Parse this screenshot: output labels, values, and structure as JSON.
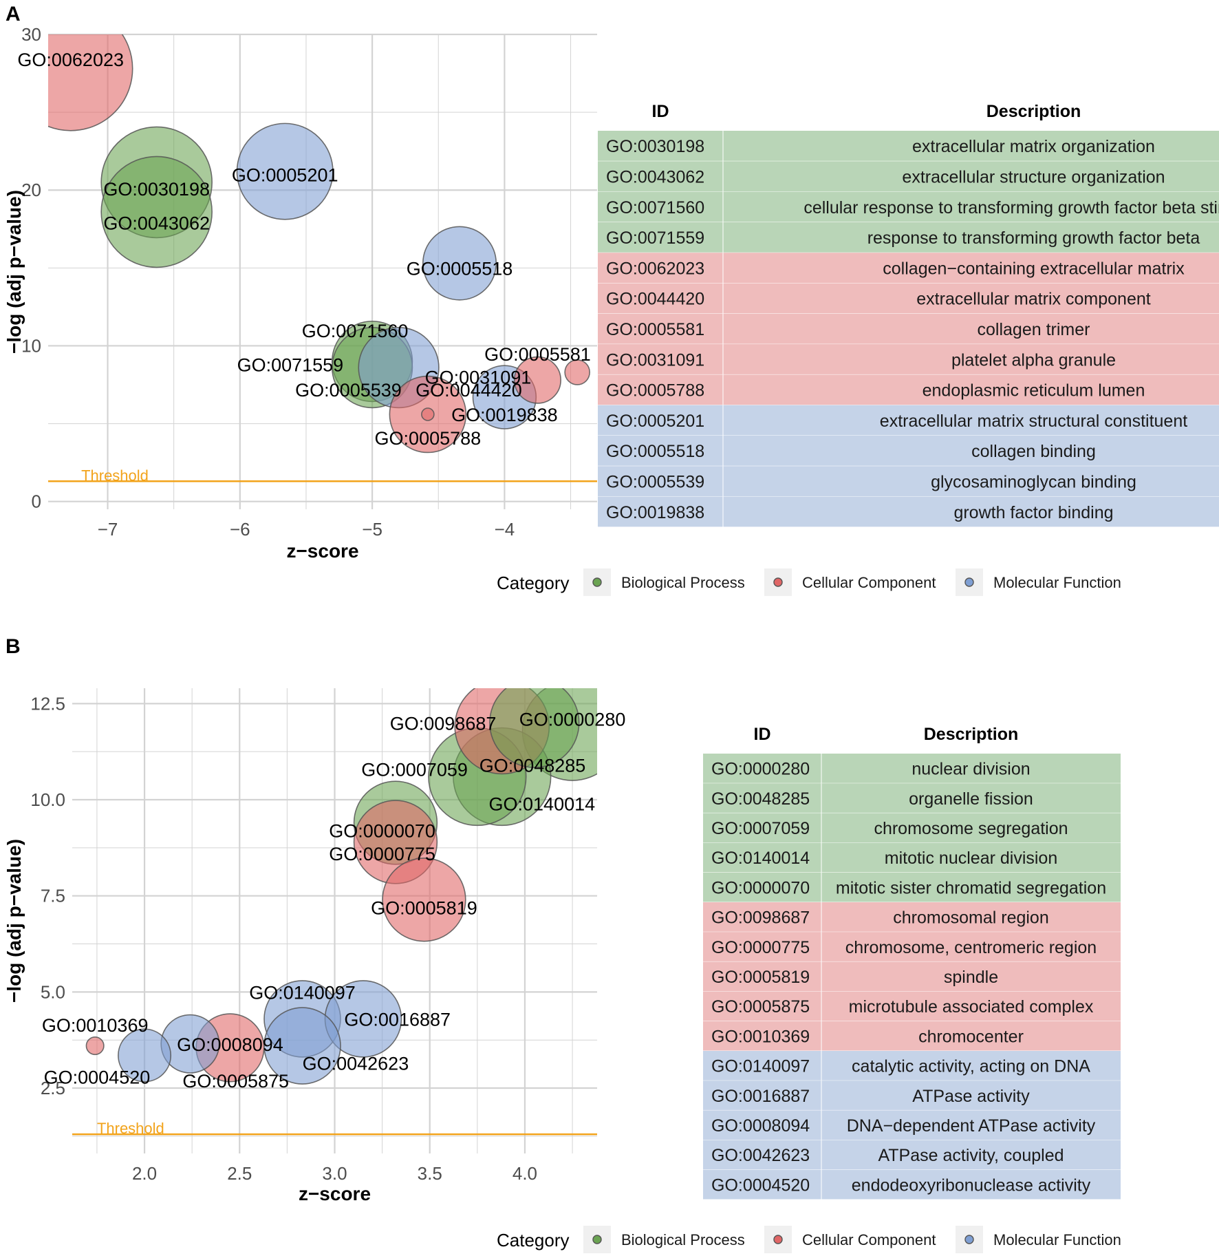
{
  "colors": {
    "Biological Process": "#6aa352",
    "Cellular Component": "#e06666",
    "Molecular Function": "#7f9fd3",
    "row_Biological Process": "#b9d5b7",
    "row_Cellular Component": "#efbcbc",
    "row_Molecular Function": "#c5d3e8",
    "threshold": "#f2a31b",
    "grid": "#d3d3d3"
  },
  "chart_data": [
    {
      "type": "scatter",
      "panel_label": "A",
      "xlabel": "z−score",
      "ylabel": "−log (adj p−value)",
      "xlim": [
        -7.45,
        -3.3
      ],
      "ylim": [
        -0.5,
        30
      ],
      "x_ticks": [
        -7,
        -6,
        -5,
        -4
      ],
      "x_tick_labels": [
        "−7",
        "−6",
        "−5",
        "−4"
      ],
      "y_ticks": [
        0,
        10,
        20,
        30
      ],
      "y_tick_labels": [
        "0",
        "10",
        "20",
        "30"
      ],
      "threshold": 1.3,
      "threshold_label": "Threshold",
      "points": [
        {
          "id": "GO:0062023",
          "category": "Cellular Component",
          "x": -7.28,
          "y": 27.8,
          "size": 100
        },
        {
          "id": "GO:0030198",
          "category": "Biological Process",
          "x": -6.63,
          "y": 20.5,
          "size": 80
        },
        {
          "id": "GO:0043062",
          "category": "Biological Process",
          "x": -6.63,
          "y": 18.6,
          "size": 80
        },
        {
          "id": "GO:0005201",
          "category": "Molecular Function",
          "x": -5.66,
          "y": 21.2,
          "size": 60
        },
        {
          "id": "GO:0005518",
          "category": "Molecular Function",
          "x": -4.34,
          "y": 15.3,
          "size": 35
        },
        {
          "id": "GO:0071560",
          "category": "Biological Process",
          "x": -5.0,
          "y": 9.0,
          "size": 42
        },
        {
          "id": "GO:0071559",
          "category": "Biological Process",
          "x": -5.0,
          "y": 8.6,
          "size": 42
        },
        {
          "id": "GO:0005539",
          "category": "Molecular Function",
          "x": -4.8,
          "y": 8.6,
          "size": 42
        },
        {
          "id": "GO:0005581",
          "category": "Cellular Component",
          "x": -3.45,
          "y": 8.3,
          "size": 4
        },
        {
          "id": "GO:0031091",
          "category": "Cellular Component",
          "x": -3.75,
          "y": 7.8,
          "size": 14
        },
        {
          "id": "GO:0044420",
          "category": "Cellular Component",
          "x": -4.58,
          "y": 5.6,
          "size": 38
        },
        {
          "id": "GO:0019838",
          "category": "Molecular Function",
          "x": -4.0,
          "y": 6.7,
          "size": 26
        },
        {
          "id": "GO:0005788",
          "category": "Cellular Component",
          "x": -4.58,
          "y": 5.6,
          "size": 1
        }
      ],
      "labels": [
        {
          "text": "GO:0062023",
          "x": -7.28,
          "y": 28.4
        },
        {
          "text": "GO:0030198",
          "x": -6.63,
          "y": 20.1
        },
        {
          "text": "GO:0043062",
          "x": -6.63,
          "y": 17.9
        },
        {
          "text": "GO:0005201",
          "x": -5.66,
          "y": 21.0
        },
        {
          "text": "GO:0005518",
          "x": -4.34,
          "y": 15.0
        },
        {
          "text": "GO:0071560",
          "x": -5.13,
          "y": 11.0
        },
        {
          "text": "GO:0071559",
          "x": -5.62,
          "y": 8.8
        },
        {
          "text": "GO:0005539",
          "x": -5.18,
          "y": 7.2
        },
        {
          "text": "GO:0005581",
          "x": -3.75,
          "y": 9.5
        },
        {
          "text": "GO:0031091",
          "x": -4.2,
          "y": 8.0
        },
        {
          "text": "GO:0044420",
          "x": -4.27,
          "y": 7.2
        },
        {
          "text": "GO:0019838",
          "x": -4.0,
          "y": 5.6
        },
        {
          "text": "GO:0005788",
          "x": -4.58,
          "y": 4.1
        }
      ],
      "legend": {
        "title": "Category",
        "entries": [
          "Biological Process",
          "Cellular Component",
          "Molecular Function"
        ]
      },
      "table": {
        "headers": {
          "id": "ID",
          "description": "Description"
        },
        "rows": [
          {
            "id": "GO:0030198",
            "description": "extracellular matrix organization",
            "category": "Biological Process"
          },
          {
            "id": "GO:0043062",
            "description": "extracellular structure organization",
            "category": "Biological Process"
          },
          {
            "id": "GO:0071560",
            "description": "cellular response to transforming growth factor beta stimulus",
            "category": "Biological Process"
          },
          {
            "id": "GO:0071559",
            "description": "response to transforming growth factor beta",
            "category": "Biological Process"
          },
          {
            "id": "GO:0062023",
            "description": "collagen−containing extracellular matrix",
            "category": "Cellular Component"
          },
          {
            "id": "GO:0044420",
            "description": "extracellular matrix component",
            "category": "Cellular Component"
          },
          {
            "id": "GO:0005581",
            "description": "collagen trimer",
            "category": "Cellular Component"
          },
          {
            "id": "GO:0031091",
            "description": "platelet alpha granule",
            "category": "Cellular Component"
          },
          {
            "id": "GO:0005788",
            "description": "endoplasmic reticulum lumen",
            "category": "Cellular Component"
          },
          {
            "id": "GO:0005201",
            "description": "extracellular matrix structural constituent",
            "category": "Molecular Function"
          },
          {
            "id": "GO:0005518",
            "description": "collagen binding",
            "category": "Molecular Function"
          },
          {
            "id": "GO:0005539",
            "description": "glycosaminoglycan binding",
            "category": "Molecular Function"
          },
          {
            "id": "GO:0019838",
            "description": "growth factor binding",
            "category": "Molecular Function"
          }
        ]
      }
    },
    {
      "type": "scatter",
      "panel_label": "B",
      "xlabel": "z−score",
      "ylabel": "−log (adj p−value)",
      "xlim": [
        1.62,
        4.38
      ],
      "ylim": [
        0.8,
        12.9
      ],
      "x_ticks": [
        2.0,
        2.5,
        3.0,
        3.5,
        4.0
      ],
      "x_tick_labels": [
        "2.0",
        "2.5",
        "3.0",
        "3.5",
        "4.0"
      ],
      "y_ticks": [
        2.5,
        5.0,
        7.5,
        10.0,
        12.5
      ],
      "y_tick_labels": [
        "2.5",
        "5.0",
        "7.5",
        "10.0",
        "12.5"
      ],
      "threshold": 1.3,
      "threshold_label": "Threshold",
      "points": [
        {
          "id": "GO:0000280",
          "category": "Biological Process",
          "x": 4.25,
          "y": 11.8,
          "size": 65
        },
        {
          "id": "GO:0048285",
          "category": "Biological Process",
          "x": 3.88,
          "y": 10.6,
          "size": 62
        },
        {
          "id": "GO:0098687",
          "category": "Cellular Component",
          "x": 3.88,
          "y": 11.9,
          "size": 58
        },
        {
          "id": "GO:0007059",
          "category": "Biological Process",
          "x": 3.75,
          "y": 10.6,
          "size": 62
        },
        {
          "id": "GO:0140014",
          "category": "Biological Process",
          "x": 4.05,
          "y": 12.0,
          "size": 52
        },
        {
          "id": "GO:0000070",
          "category": "Biological Process",
          "x": 3.32,
          "y": 9.4,
          "size": 45
        },
        {
          "id": "GO:0000775",
          "category": "Cellular Component",
          "x": 3.32,
          "y": 8.9,
          "size": 45
        },
        {
          "id": "GO:0005819",
          "category": "Cellular Component",
          "x": 3.47,
          "y": 7.4,
          "size": 45
        },
        {
          "id": "GO:0140097",
          "category": "Molecular Function",
          "x": 2.83,
          "y": 4.3,
          "size": 38
        },
        {
          "id": "GO:0016887",
          "category": "Molecular Function",
          "x": 3.15,
          "y": 4.3,
          "size": 38
        },
        {
          "id": "GO:0042623",
          "category": "Molecular Function",
          "x": 2.83,
          "y": 3.6,
          "size": 38
        },
        {
          "id": "GO:0008094",
          "category": "Molecular Function",
          "x": 2.24,
          "y": 3.65,
          "size": 22
        },
        {
          "id": "GO:0005875",
          "category": "Cellular Component",
          "x": 2.45,
          "y": 3.55,
          "size": 30
        },
        {
          "id": "GO:0010369",
          "category": "Cellular Component",
          "x": 1.74,
          "y": 3.6,
          "size": 2
        },
        {
          "id": "GO:0004520",
          "category": "Molecular Function",
          "x": 2.0,
          "y": 3.35,
          "size": 18
        }
      ],
      "labels": [
        {
          "text": "GO:0000280",
          "x": 4.25,
          "y": 12.1
        },
        {
          "text": "GO:0098687",
          "x": 3.57,
          "y": 12.0
        },
        {
          "text": "GO:0048285",
          "x": 4.04,
          "y": 10.9
        },
        {
          "text": "GO:0007059",
          "x": 3.42,
          "y": 10.8
        },
        {
          "text": "GO:0140014",
          "x": 4.09,
          "y": 9.9
        },
        {
          "text": "GO:0000070",
          "x": 3.25,
          "y": 9.2
        },
        {
          "text": "GO:0000775",
          "x": 3.25,
          "y": 8.6
        },
        {
          "text": "GO:0005819",
          "x": 3.47,
          "y": 7.2
        },
        {
          "text": "GO:0140097",
          "x": 2.83,
          "y": 5.0
        },
        {
          "text": "GO:0016887",
          "x": 3.33,
          "y": 4.3
        },
        {
          "text": "GO:0042623",
          "x": 3.11,
          "y": 3.15
        },
        {
          "text": "GO:0008094",
          "x": 2.45,
          "y": 3.65
        },
        {
          "text": "GO:0005875",
          "x": 2.48,
          "y": 2.7
        },
        {
          "text": "GO:0010369",
          "x": 1.74,
          "y": 4.15
        },
        {
          "text": "GO:0004520",
          "x": 1.75,
          "y": 2.8
        }
      ],
      "legend": {
        "title": "Category",
        "entries": [
          "Biological Process",
          "Cellular Component",
          "Molecular Function"
        ]
      },
      "table": {
        "headers": {
          "id": "ID",
          "description": "Description"
        },
        "rows": [
          {
            "id": "GO:0000280",
            "description": "nuclear division",
            "category": "Biological Process"
          },
          {
            "id": "GO:0048285",
            "description": "organelle fission",
            "category": "Biological Process"
          },
          {
            "id": "GO:0007059",
            "description": "chromosome segregation",
            "category": "Biological Process"
          },
          {
            "id": "GO:0140014",
            "description": "mitotic nuclear division",
            "category": "Biological Process"
          },
          {
            "id": "GO:0000070",
            "description": "mitotic sister chromatid segregation",
            "category": "Biological Process"
          },
          {
            "id": "GO:0098687",
            "description": "chromosomal region",
            "category": "Cellular Component"
          },
          {
            "id": "GO:0000775",
            "description": "chromosome, centromeric region",
            "category": "Cellular Component"
          },
          {
            "id": "GO:0005819",
            "description": "spindle",
            "category": "Cellular Component"
          },
          {
            "id": "GO:0005875",
            "description": "microtubule associated complex",
            "category": "Cellular Component"
          },
          {
            "id": "GO:0010369",
            "description": "chromocenter",
            "category": "Cellular Component"
          },
          {
            "id": "GO:0140097",
            "description": "catalytic activity, acting on DNA",
            "category": "Molecular Function"
          },
          {
            "id": "GO:0016887",
            "description": "ATPase activity",
            "category": "Molecular Function"
          },
          {
            "id": "GO:0008094",
            "description": "DNA−dependent ATPase activity",
            "category": "Molecular Function"
          },
          {
            "id": "GO:0042623",
            "description": "ATPase activity, coupled",
            "category": "Molecular Function"
          },
          {
            "id": "GO:0004520",
            "description": "endodeoxyribonuclease activity",
            "category": "Molecular Function"
          }
        ]
      }
    }
  ]
}
